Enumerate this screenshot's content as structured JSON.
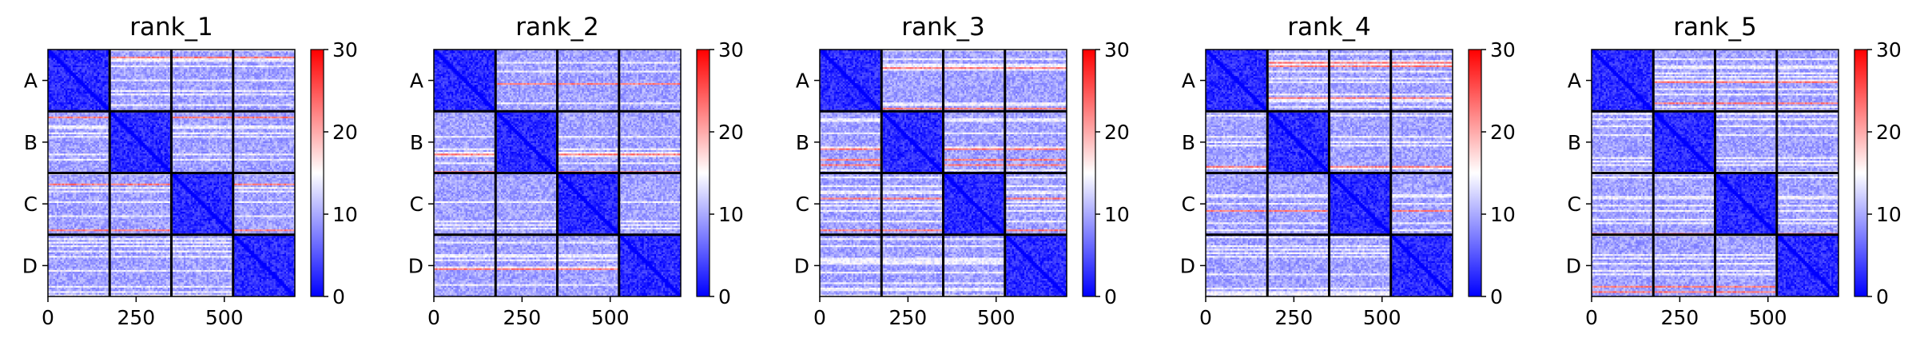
{
  "chart_data": [
    {
      "type": "heatmap",
      "title": "rank_1",
      "diagonal_block_order": [
        "A",
        "B",
        "C",
        "D"
      ],
      "y_tick_labels": [
        "A",
        "B",
        "C",
        "D"
      ],
      "x_ticks": [
        0,
        250,
        500
      ],
      "x_tick_labels": [
        "0",
        "250",
        "500"
      ],
      "matrix_size": 700,
      "block_boundaries": [
        0,
        175,
        350,
        525,
        700
      ],
      "colorbar": {
        "min": 0,
        "max": 30,
        "ticks": [
          0,
          10,
          20,
          30
        ],
        "tick_labels": [
          "0",
          "10",
          "20",
          "30"
        ],
        "colormap": "bwr"
      },
      "value_ranges": {
        "within_block": [
          0,
          5
        ],
        "between_block": [
          7,
          16
        ],
        "highlight_rows": [
          20,
          25
        ]
      }
    },
    {
      "type": "heatmap",
      "title": "rank_2",
      "diagonal_block_order": [
        "A",
        "B",
        "C",
        "D"
      ],
      "y_tick_labels": [
        "A",
        "B",
        "C",
        "D"
      ],
      "x_ticks": [
        0,
        250,
        500
      ],
      "x_tick_labels": [
        "0",
        "250",
        "500"
      ],
      "matrix_size": 700,
      "block_boundaries": [
        0,
        175,
        350,
        525,
        700
      ],
      "colorbar": {
        "min": 0,
        "max": 30,
        "ticks": [
          0,
          10,
          20,
          30
        ],
        "tick_labels": [
          "0",
          "10",
          "20",
          "30"
        ],
        "colormap": "bwr"
      },
      "value_ranges": {
        "within_block": [
          0,
          5
        ],
        "between_block": [
          7,
          16
        ],
        "highlight_rows": [
          20,
          25
        ]
      }
    },
    {
      "type": "heatmap",
      "title": "rank_3",
      "diagonal_block_order": [
        "A",
        "B",
        "C",
        "D"
      ],
      "y_tick_labels": [
        "A",
        "B",
        "C",
        "D"
      ],
      "x_ticks": [
        0,
        250,
        500
      ],
      "x_tick_labels": [
        "0",
        "250",
        "500"
      ],
      "matrix_size": 700,
      "block_boundaries": [
        0,
        175,
        350,
        525,
        700
      ],
      "colorbar": {
        "min": 0,
        "max": 30,
        "ticks": [
          0,
          10,
          20,
          30
        ],
        "tick_labels": [
          "0",
          "10",
          "20",
          "30"
        ],
        "colormap": "bwr"
      },
      "value_ranges": {
        "within_block": [
          0,
          5
        ],
        "between_block": [
          7,
          16
        ],
        "highlight_rows": [
          20,
          25
        ]
      }
    },
    {
      "type": "heatmap",
      "title": "rank_4",
      "diagonal_block_order": [
        "A",
        "B",
        "C",
        "D"
      ],
      "y_tick_labels": [
        "A",
        "B",
        "C",
        "D"
      ],
      "x_ticks": [
        0,
        250,
        500
      ],
      "x_tick_labels": [
        "0",
        "250",
        "500"
      ],
      "matrix_size": 700,
      "block_boundaries": [
        0,
        175,
        350,
        525,
        700
      ],
      "colorbar": {
        "min": 0,
        "max": 30,
        "ticks": [
          0,
          10,
          20,
          30
        ],
        "tick_labels": [
          "0",
          "10",
          "20",
          "30"
        ],
        "colormap": "bwr"
      },
      "value_ranges": {
        "within_block": [
          0,
          5
        ],
        "between_block": [
          7,
          16
        ],
        "highlight_rows": [
          20,
          25
        ]
      }
    },
    {
      "type": "heatmap",
      "title": "rank_5",
      "diagonal_block_order": [
        "A",
        "B",
        "C",
        "D"
      ],
      "y_tick_labels": [
        "A",
        "B",
        "C",
        "D"
      ],
      "x_ticks": [
        0,
        250,
        500
      ],
      "x_tick_labels": [
        "0",
        "250",
        "500"
      ],
      "matrix_size": 700,
      "block_boundaries": [
        0,
        175,
        350,
        525,
        700
      ],
      "colorbar": {
        "min": 0,
        "max": 30,
        "ticks": [
          0,
          10,
          20,
          30
        ],
        "tick_labels": [
          "0",
          "10",
          "20",
          "30"
        ],
        "colormap": "bwr"
      },
      "value_ranges": {
        "within_block": [
          0,
          5
        ],
        "between_block": [
          7,
          16
        ],
        "highlight_rows": [
          20,
          25
        ]
      }
    }
  ]
}
